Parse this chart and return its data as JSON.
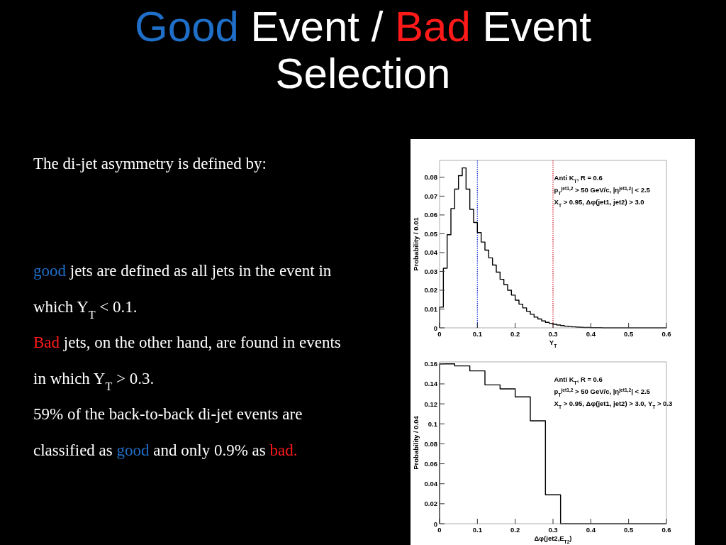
{
  "chart_data": [
    {
      "type": "other",
      "title": "Good Event / Bad Event Selection",
      "annotations": [
        "The di-jet asymmetry is defined by:",
        "good jets are defined as all jets in the event in which Y$_{T}$ < 0.1.",
        "Bad jets, on the other hand, are found in events in which Y$_{T}$ > 0.3.",
        "59% of the back-to-back di-jet events are classified as good and only 0.9% as bad."
      ]
    },
    {
      "type": "histogram",
      "xlabel": "Y$_{T}$",
      "ylabel": "Probability / 0.01",
      "color": "#000000",
      "bins": [
        0,
        0.01,
        0.02,
        0.03,
        0.04,
        0.05,
        0.06,
        0.07,
        0.08,
        0.09,
        0.1,
        0.11,
        0.12,
        0.13,
        0.14,
        0.15,
        0.16,
        0.17,
        0.18,
        0.19,
        0.2,
        0.21,
        0.22,
        0.23,
        0.24,
        0.25,
        0.26,
        0.27,
        0.28,
        0.29,
        0.3,
        0.31,
        0.32,
        0.33,
        0.34,
        0.35,
        0.36,
        0.37,
        0.38,
        0.39,
        0.4,
        0.41,
        0.42,
        0.43,
        0.44,
        0.45,
        0.46,
        0.47,
        0.48,
        0.49,
        0.5,
        0.51,
        0.52,
        0.53,
        0.54,
        0.55,
        0.56,
        0.57,
        0.58,
        0.59,
        0.6
      ],
      "values": [
        0.011,
        0.0317,
        0.0495,
        0.0634,
        0.0737,
        0.0809,
        0.085,
        0.0737,
        0.063,
        0.056,
        0.0506,
        0.0456,
        0.0413,
        0.0372,
        0.0334,
        0.0296,
        0.0258,
        0.023,
        0.02,
        0.0174,
        0.0147,
        0.0126,
        0.0106,
        0.0088,
        0.0072,
        0.0057,
        0.0047,
        0.0037,
        0.0029,
        0.0024,
        0.0019,
        0.0015,
        0.0012,
        0.0009,
        0.0007,
        0.0005,
        0.0004,
        0.0003,
        0.0002,
        0.0002,
        0.0001,
        0.0001,
        0.0001,
        0,
        0,
        0,
        0,
        0,
        0,
        0,
        0,
        0,
        0,
        0,
        0,
        0,
        0,
        0,
        0,
        0
      ],
      "xlim": [
        0,
        0.6
      ],
      "xticks": [
        0,
        0.1,
        0.2,
        0.3,
        0.4,
        0.5,
        0.6
      ],
      "ylim": [
        0,
        0.089
      ],
      "yticks": [
        0,
        0.01,
        0.02,
        0.03,
        0.04,
        0.05,
        0.06,
        0.07,
        0.08
      ],
      "ref_lines": [
        {
          "axis": "x",
          "value": 0.1,
          "color": "#2a3cd6",
          "line_style": "dotted"
        },
        {
          "axis": "x",
          "value": 0.3,
          "color": "#d62a3c",
          "line_style": "dotted"
        }
      ],
      "annotations": [
        "Anti K$_{T}$, R = 0.6",
        "p$_{T}$$^{jet1,2}$ > 50 GeV/c, |η$^{jet1,2}$| < 2.5",
        "X$_{T}$ > 0.95, Δφ(jet1, jet2) > 3.0"
      ],
      "grid": false
    },
    {
      "type": "histogram",
      "xlabel": "Δφ(jet2,E$_{T2}$)",
      "ylabel": "Probability / 0.04",
      "color": "#000000",
      "bins": [
        0,
        0.04,
        0.08,
        0.12,
        0.16,
        0.2,
        0.24,
        0.28,
        0.32,
        0.36,
        0.4,
        0.44,
        0.48,
        0.52,
        0.56,
        0.6
      ],
      "values": [
        0.16,
        0.158,
        0.153,
        0.139,
        0.135,
        0.127,
        0.103,
        0.029,
        0,
        0,
        0,
        0,
        0,
        0,
        0
      ],
      "xlim": [
        0,
        0.6
      ],
      "xticks": [
        0,
        0.1,
        0.2,
        0.3,
        0.4,
        0.5,
        0.6
      ],
      "ylim": [
        0,
        0.162
      ],
      "yticks": [
        0,
        0.02,
        0.04,
        0.06,
        0.08,
        0.1,
        0.12,
        0.14,
        0.16
      ],
      "annotations": [
        "Anti K$_{T}$, R = 0.6",
        "p$_{T}$$^{jet1,2}$ > 50 GeV/c, |η$^{jet1,2}$| < 2.5",
        "X$_{T}$ > 0.95, Δφ(jet1, jet2) > 3.0, Y$_{T}$ > 0.3"
      ],
      "grid": false
    }
  ]
}
